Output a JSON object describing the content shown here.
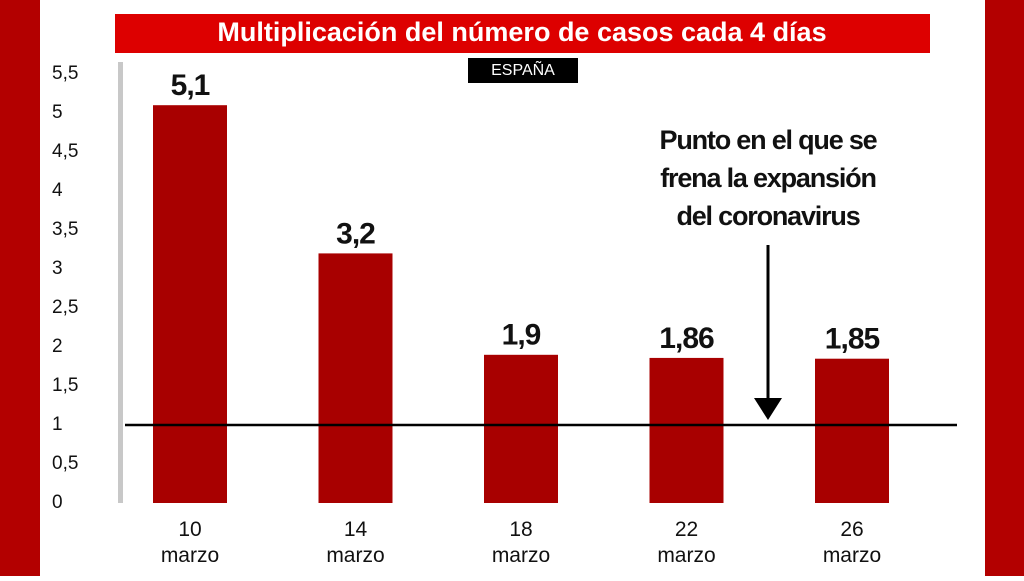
{
  "chart_data": {
    "type": "bar",
    "title": "Multiplicación del número de casos cada 4 días",
    "subtitle": "ESPAÑA",
    "categories": [
      "10 marzo",
      "14 marzo",
      "18 marzo",
      "22 marzo",
      "26 marzo"
    ],
    "values": [
      5.1,
      3.2,
      1.9,
      1.86,
      1.85
    ],
    "value_labels": [
      "5,1",
      "3,2",
      "1,9",
      "1,86",
      "1,85"
    ],
    "color": "#a80000",
    "ylim": [
      0,
      5.5
    ],
    "yticks": [
      0,
      {
        "value": 0.5,
        "label": "0,5"
      },
      1,
      {
        "value": 1.5,
        "label": "1,5"
      },
      2,
      {
        "value": 2.5,
        "label": "2,5"
      },
      3,
      {
        "value": 3.5,
        "label": "3,5"
      },
      4,
      {
        "value": 4.5,
        "label": "4,5"
      },
      5,
      {
        "value": 5.5,
        "label": "5,5"
      }
    ],
    "reference_line": 1,
    "annotation_lines": [
      "Punto en el que se",
      "frena la expansión",
      "del coronavirus"
    ]
  }
}
